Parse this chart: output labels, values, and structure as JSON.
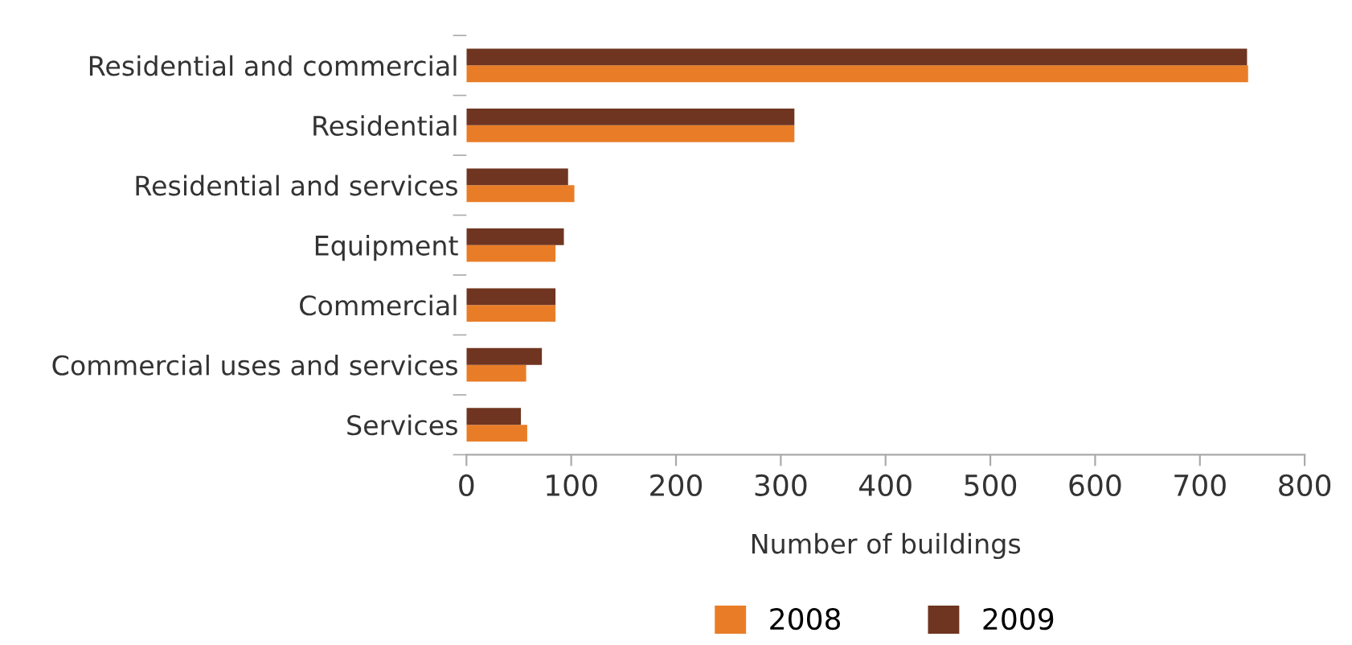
{
  "chart_data": {
    "type": "bar",
    "orientation": "horizontal",
    "xlabel": "Number of buildings",
    "categories": [
      "Residential and commercial",
      "Residential",
      "Residential and services",
      "Equipment",
      "Commercial",
      "Commercial uses and services",
      "Services"
    ],
    "series": [
      {
        "name": "2008",
        "color": "#e97d27",
        "values": [
          746,
          313,
          103,
          85,
          85,
          57,
          58
        ]
      },
      {
        "name": "2009",
        "color": "#6f3520",
        "values": [
          745,
          313,
          97,
          93,
          85,
          72,
          52
        ]
      }
    ],
    "xlim": [
      0,
      800
    ],
    "xticks": [
      0,
      100,
      200,
      300,
      400,
      500,
      600,
      700,
      800
    ],
    "grid": false,
    "legend": "bottom"
  }
}
